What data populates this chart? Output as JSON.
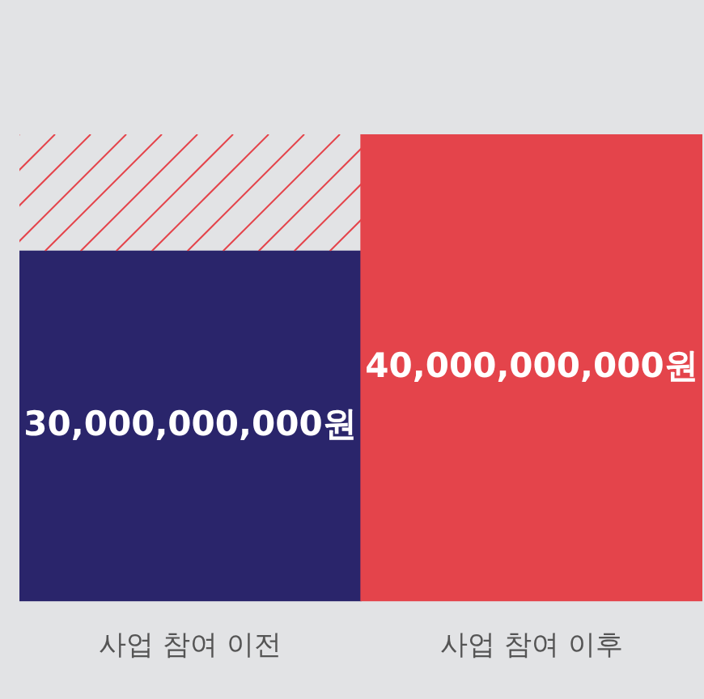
{
  "chart_data": {
    "type": "bar",
    "categories": [
      "사업 참여 이전",
      "사업 참여 이후"
    ],
    "values": [
      30000000000,
      40000000000
    ],
    "colors": [
      "#2a256b",
      "#e4444b"
    ],
    "value_labels": [
      "30,000,000,000원",
      "40,000,000,000원"
    ],
    "ylim": [
      0,
      40000000000
    ],
    "tick_labels": "x",
    "grid": false,
    "legend": false
  }
}
